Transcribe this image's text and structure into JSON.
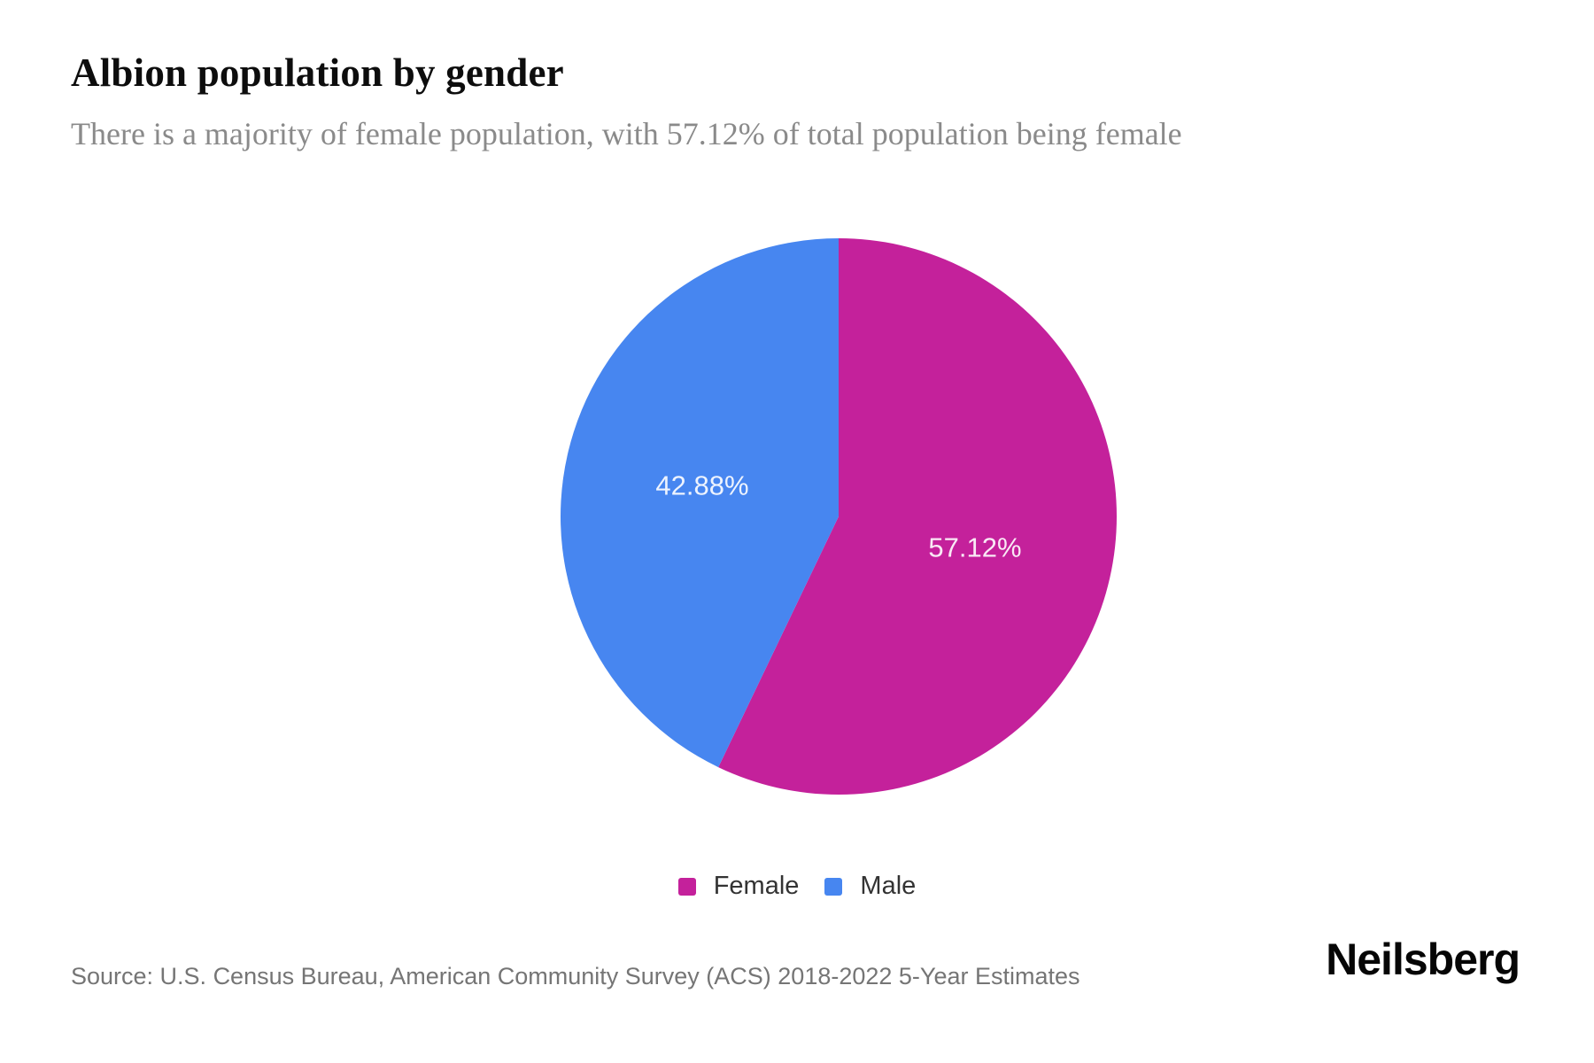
{
  "header": {
    "title": "Albion population by gender",
    "subtitle": "There is a majority of female population, with 57.12% of total population being female"
  },
  "chart_data": {
    "type": "pie",
    "title": "Albion population by gender",
    "subtitle": "There is a majority of female population, with 57.12% of total population being female",
    "series": [
      {
        "name": "Female",
        "value": 57.12,
        "label": "57.12%",
        "color": "#C4219B"
      },
      {
        "name": "Male",
        "value": 42.88,
        "label": "42.88%",
        "color": "#4786F0"
      }
    ],
    "unit": "%",
    "start_angle_deg": 0,
    "direction": "clockwise",
    "data_labels": "inside",
    "data_label_color": "#FFFFFF",
    "legend_position": "bottom"
  },
  "footer": {
    "source": "Source: U.S. Census Bureau, American Community Survey (ACS) 2018-2022 5-Year Estimates",
    "brand": "Neilsberg"
  }
}
